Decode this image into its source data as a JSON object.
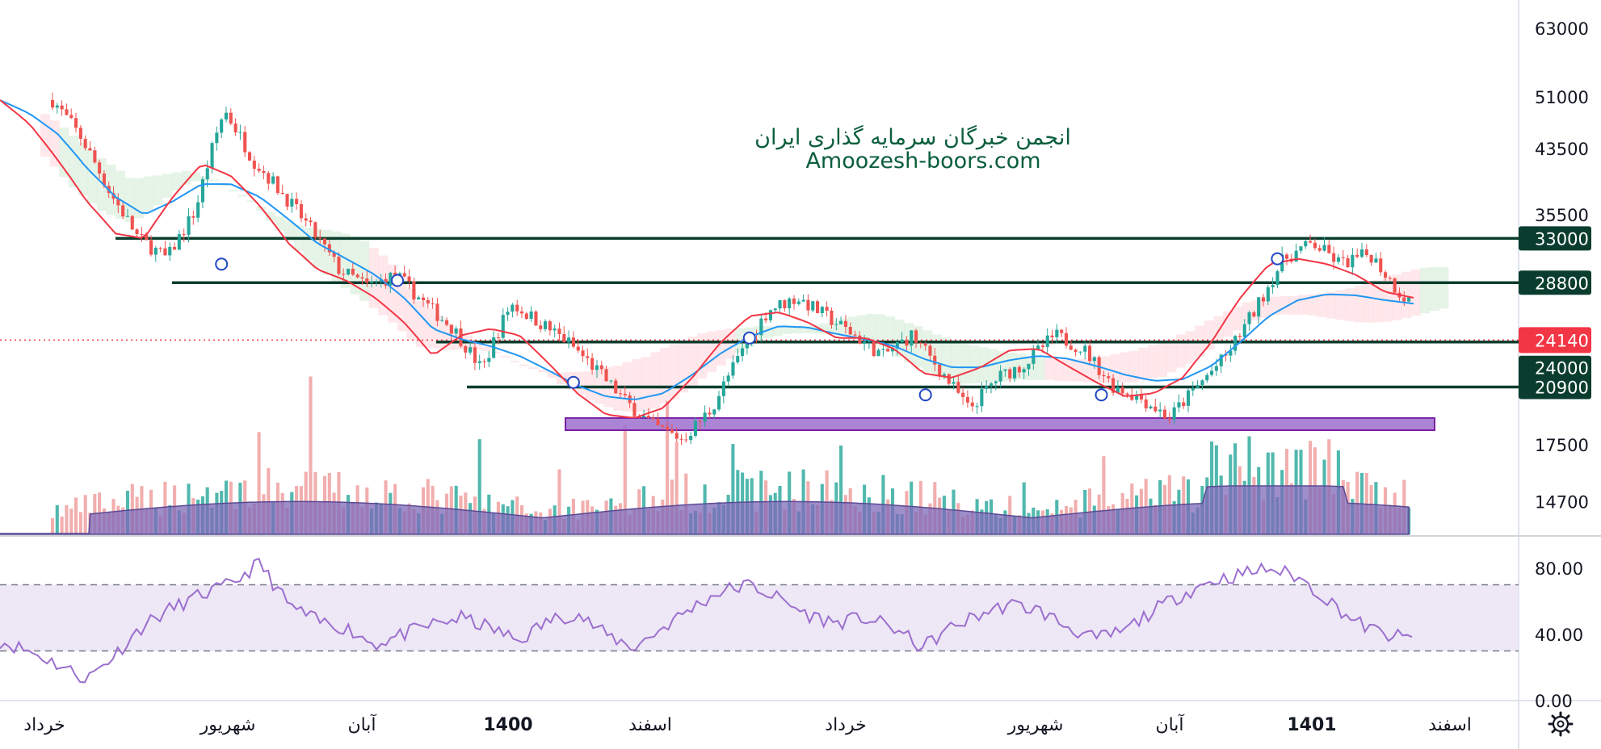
{
  "watermark": {
    "line1": "انجمن خبرگان سرمایه گذاری ایران",
    "line2": "Amoozesh-boors.com"
  },
  "colors": {
    "up": "#26a69a",
    "down": "#ef5350",
    "ema_fast": "#f23645",
    "ema_slow": "#2196f3",
    "level_line": "#0b3d2e",
    "level_box": "#0b3d2e",
    "current_price_box": "#f23645",
    "zone": "#9c6fce",
    "rsi_line": "#9c6fce",
    "rsi_band": "#ede7f6",
    "volume_area": "#7e68b8"
  },
  "icons": {
    "settings": "gear-icon",
    "signal_markers": "circle-marker-icon"
  },
  "chart_data": {
    "type": "candlestick",
    "y_scale": "log",
    "price_axis_ticks": [
      63000,
      51000,
      43500,
      35500,
      17500,
      14700
    ],
    "time_axis_labels": [
      "خرداد",
      "شهریور",
      "آبان",
      "1400",
      "اسفند",
      "خرداد",
      "شهریور",
      "آبان",
      "1401",
      "اسفند"
    ],
    "time_axis_bold": [
      false,
      false,
      false,
      true,
      false,
      false,
      false,
      false,
      true,
      false
    ],
    "horizontal_levels": [
      {
        "label": "33000",
        "value": 33000
      },
      {
        "label": "28800",
        "value": 28800
      },
      {
        "label": "24000",
        "value": 24000
      },
      {
        "label": "20900",
        "value": 20900
      }
    ],
    "current_price": {
      "label": "24140",
      "value": 24140
    },
    "support_zone": {
      "low": 18300,
      "high": 19000
    },
    "price_path_keypoints": [
      50500,
      45000,
      38000,
      33000,
      31000,
      36000,
      49000,
      42000,
      38000,
      34000,
      30000,
      28500,
      29500,
      27000,
      25000,
      22000,
      27000,
      25500,
      24000,
      22000,
      20000,
      18500,
      17800,
      19500,
      23000,
      26500,
      27500,
      26000,
      24500,
      23000,
      24500,
      22000,
      19500,
      21500,
      22500,
      24500,
      23500,
      21000,
      20200,
      19000,
      21000,
      23000,
      26500,
      31000,
      32500,
      30500,
      31500,
      28000,
      26000,
      24140
    ],
    "ema_fast_keypoints": [
      50500,
      47000,
      42000,
      37000,
      33500,
      33000,
      37500,
      41500,
      40000,
      36500,
      32500,
      30000,
      29000,
      27500,
      25500,
      23000,
      24500,
      25000,
      24500,
      22500,
      20500,
      19200,
      19000,
      19600,
      21500,
      24000,
      26000,
      26300,
      25500,
      24300,
      24300,
      23500,
      21800,
      21500,
      22200,
      23400,
      23500,
      22300,
      21200,
      20300,
      20500,
      21500,
      24000,
      27500,
      30500,
      31000,
      30500,
      29500,
      28000,
      27500
    ],
    "ema_slow_keypoints": [
      50500,
      48500,
      45500,
      41000,
      37500,
      35500,
      37000,
      39000,
      39000,
      37500,
      35000,
      32500,
      31000,
      29500,
      27500,
      25000,
      24200,
      23700,
      23000,
      22000,
      21000,
      20300,
      20100,
      20500,
      21700,
      23200,
      24400,
      25200,
      25100,
      24600,
      24200,
      23700,
      22800,
      22200,
      22200,
      22700,
      23000,
      22800,
      22300,
      21700,
      21300,
      21400,
      22300,
      24000,
      26000,
      27300,
      27800,
      27700,
      27300,
      27000
    ],
    "signal_markers": [
      {
        "x_fraction": 0.12,
        "price": 30500
      },
      {
        "x_fraction": 0.245,
        "price": 29000
      },
      {
        "x_fraction": 0.37,
        "price": 21200
      },
      {
        "x_fraction": 0.495,
        "price": 24300
      },
      {
        "x_fraction": 0.62,
        "price": 20400
      },
      {
        "x_fraction": 0.745,
        "price": 20400
      },
      {
        "x_fraction": 0.87,
        "price": 31000
      }
    ],
    "rsi": {
      "axis_ticks": [
        "80.00",
        "40.00",
        "0.00"
      ],
      "upper_band": 70,
      "lower_band": 30,
      "keypoints": [
        36,
        30,
        22,
        13,
        28,
        46,
        56,
        64,
        70,
        83,
        58,
        48,
        44,
        34,
        40,
        46,
        50,
        44,
        36,
        48,
        53,
        40,
        32,
        44,
        56,
        66,
        70,
        62,
        52,
        47,
        50,
        44,
        32,
        44,
        52,
        58,
        55,
        45,
        37,
        42,
        54,
        64,
        72,
        76,
        80,
        75,
        62,
        48,
        40,
        37
      ]
    }
  }
}
